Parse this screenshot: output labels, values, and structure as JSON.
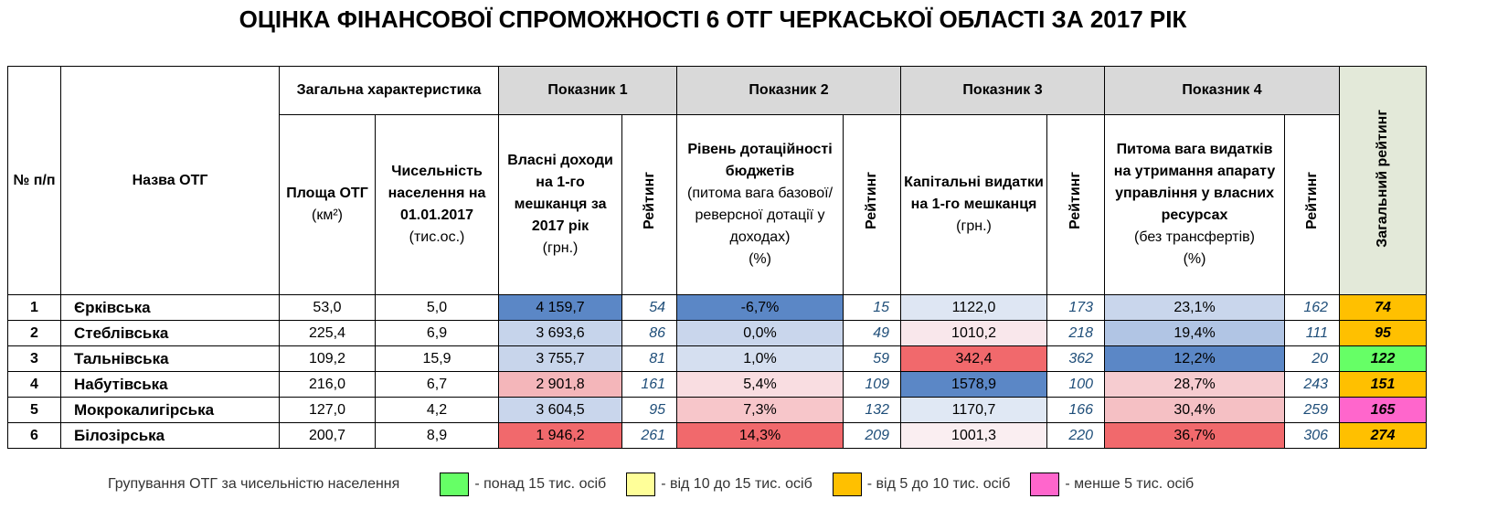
{
  "header": {
    "title": "ОЦІНКА ФІНАНСОВОЇ СПРОМОЖНОСТІ 6 ОТГ ЧЕРКАСЬКОЇ ОБЛАСТІ ЗА 2017 РІК"
  },
  "table": {
    "columns": {
      "num": "№ п/п",
      "name": "Назва ОТГ",
      "general": "Загальна характеристика",
      "ind1": "Показник 1",
      "ind2": "Показник 2",
      "ind3": "Показник 3",
      "ind4": "Показник 4",
      "total": "Загальний рейтинг",
      "rank": "Рейтинг",
      "area": {
        "main": "Площа ОТГ",
        "notes": [
          "(км²)"
        ]
      },
      "population": {
        "main": "Чисельність населення на 01.01.2017",
        "notes": [
          "(тис.ос.)"
        ]
      },
      "p1": {
        "main": "Власні доходи на 1-го мешканця за 2017 рік",
        "notes": [
          "(грн.)"
        ]
      },
      "p2": {
        "main": "Рівень дотаційності бюджетів",
        "notes": [
          "(питома вага базової/ реверсної дотації у доходах)",
          "(%)"
        ]
      },
      "p3": {
        "main": "Капітальні видатки на 1-го мешканця",
        "notes": [
          "(грн.)"
        ]
      },
      "p4": {
        "main": "Питома вага видатків на утримання апарату управління у власних ресурсах",
        "notes": [
          "(без трансфертів)",
          "(%)"
        ]
      }
    },
    "rows": [
      {
        "num": "1",
        "name": "Єрківська",
        "area": "53,0",
        "population": "5,0",
        "p1": "4 159,7",
        "p1_rank": "54",
        "p2": "-6,7%",
        "p2_rank": "15",
        "p3": "1122,0",
        "p3_rank": "173",
        "p4": "23,1%",
        "p4_rank": "162",
        "total": "74",
        "colors": {
          "p1": "#5b87c6",
          "p2": "#5b87c6",
          "p3": "#dee6f3",
          "p4": "#c9d6ec",
          "total": "#ffc000"
        }
      },
      {
        "num": "2",
        "name": "Стеблівська",
        "area": "225,4",
        "population": "6,9",
        "p1": "3 693,6",
        "p1_rank": "86",
        "p2": "0,0%",
        "p2_rank": "49",
        "p3": "1010,2",
        "p3_rank": "218",
        "p4": "19,4%",
        "p4_rank": "111",
        "total": "95",
        "colors": {
          "p1": "#c6d4eb",
          "p2": "#c9d6ec",
          "p3": "#f9e7eb",
          "p4": "#b1c5e4",
          "total": "#ffc000"
        }
      },
      {
        "num": "3",
        "name": "Тальнівська",
        "area": "109,2",
        "population": "15,9",
        "p1": "3 755,7",
        "p1_rank": "81",
        "p2": "1,0%",
        "p2_rank": "59",
        "p3": "342,4",
        "p3_rank": "362",
        "p4": "12,2%",
        "p4_rank": "20",
        "total": "122",
        "colors": {
          "p1": "#c8d5eb",
          "p2": "#d5dff0",
          "p3": "#f1696c",
          "p4": "#5b87c6",
          "total": "#66ff66"
        }
      },
      {
        "num": "4",
        "name": "Набутівська",
        "area": "216,0",
        "population": "6,7",
        "p1": "2 901,8",
        "p1_rank": "161",
        "p2": "5,4%",
        "p2_rank": "109",
        "p3": "1578,9",
        "p3_rank": "100",
        "p4": "28,7%",
        "p4_rank": "243",
        "total": "151",
        "colors": {
          "p1": "#f4b6ba",
          "p2": "#f9dde1",
          "p3": "#5b87c6",
          "p4": "#f6ccd0",
          "total": "#ffc000"
        }
      },
      {
        "num": "5",
        "name": "Мокрокалигірська",
        "area": "127,0",
        "population": "4,2",
        "p1": "3 604,5",
        "p1_rank": "95",
        "p2": "7,3%",
        "p2_rank": "132",
        "p3": "1170,7",
        "p3_rank": "166",
        "p4": "30,4%",
        "p4_rank": "259",
        "total": "165",
        "colors": {
          "p1": "#c9d6ec",
          "p2": "#f7c6ca",
          "p3": "#e0e8f4",
          "p4": "#f5c0c4",
          "total": "#ff66cc"
        }
      },
      {
        "num": "6",
        "name": "Білозірська",
        "area": "200,7",
        "population": "8,9",
        "p1": "1 946,2",
        "p1_rank": "261",
        "p2": "14,3%",
        "p2_rank": "209",
        "p3": "1001,3",
        "p3_rank": "220",
        "p4": "36,7%",
        "p4_rank": "306",
        "total": "274",
        "colors": {
          "p1": "#f1696c",
          "p2": "#f1696c",
          "p3": "#faeef1",
          "p4": "#f1696c",
          "total": "#ffc000"
        }
      }
    ]
  },
  "legend": {
    "title": "Групування ОТГ за чисельністю населення",
    "items": [
      {
        "label": "- понад 15 тис. осіб",
        "color": "#66ff66"
      },
      {
        "label": "- від 10 до 15 тис. осіб",
        "color": "#ffff99"
      },
      {
        "label": "- від 5 до 10 тис. осіб",
        "color": "#ffc000"
      },
      {
        "label": "- менше 5 тис. осіб",
        "color": "#ff66cc"
      }
    ]
  }
}
